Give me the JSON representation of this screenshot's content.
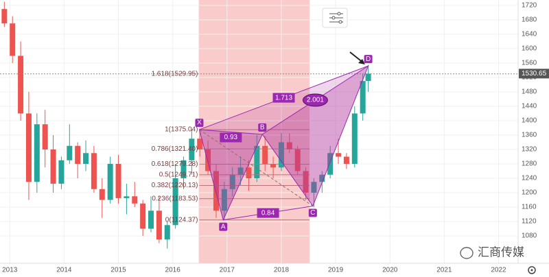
{
  "chart_data": {
    "type": "candlestick",
    "x": [
      2012.9,
      2013.05,
      2013.2,
      2013.35,
      2013.5,
      2013.65,
      2013.8,
      2013.95,
      2014.1,
      2014.25,
      2014.4,
      2014.55,
      2014.7,
      2014.85,
      2015.0,
      2015.15,
      2015.3,
      2015.45,
      2015.6,
      2015.75,
      2015.9,
      2016.05,
      2016.2,
      2016.35,
      2016.5,
      2016.65,
      2016.8,
      2016.95,
      2017.1,
      2017.25,
      2017.4,
      2017.55,
      2017.7,
      2017.85,
      2018.0,
      2018.15,
      2018.3,
      2018.45,
      2018.6,
      2018.75,
      2018.9,
      2019.05,
      2019.2,
      2019.35,
      2019.5,
      2019.6
    ],
    "open": [
      1710,
      1670,
      1580,
      1420,
      1230,
      1390,
      1320,
      1225,
      1290,
      1330,
      1280,
      1310,
      1210,
      1180,
      1280,
      1185,
      1190,
      1170,
      1100,
      1150,
      1070,
      1110,
      1240,
      1290,
      1350,
      1320,
      1260,
      1150,
      1210,
      1250,
      1270,
      1240,
      1330,
      1280,
      1270,
      1340,
      1320,
      1260,
      1200,
      1230,
      1250,
      1310,
      1300,
      1280,
      1420,
      1510
    ],
    "high": [
      1730,
      1690,
      1620,
      1480,
      1420,
      1430,
      1360,
      1300,
      1390,
      1340,
      1345,
      1330,
      1240,
      1300,
      1305,
      1225,
      1230,
      1180,
      1190,
      1190,
      1120,
      1280,
      1300,
      1375,
      1375,
      1345,
      1280,
      1230,
      1270,
      1300,
      1290,
      1360,
      1357,
      1300,
      1366,
      1365,
      1330,
      1270,
      1240,
      1260,
      1330,
      1350,
      1310,
      1440,
      1530,
      1555
    ],
    "low": [
      1660,
      1560,
      1400,
      1180,
      1200,
      1270,
      1200,
      1210,
      1280,
      1240,
      1260,
      1200,
      1130,
      1170,
      1170,
      1140,
      1160,
      1080,
      1090,
      1060,
      1045,
      1100,
      1210,
      1250,
      1300,
      1250,
      1130,
      1124,
      1190,
      1220,
      1205,
      1230,
      1260,
      1240,
      1260,
      1310,
      1250,
      1180,
      1160,
      1200,
      1240,
      1280,
      1266,
      1270,
      1400,
      1480
    ],
    "close": [
      1670,
      1580,
      1420,
      1230,
      1390,
      1320,
      1225,
      1290,
      1330,
      1280,
      1310,
      1210,
      1180,
      1280,
      1185,
      1190,
      1170,
      1100,
      1150,
      1070,
      1110,
      1240,
      1290,
      1350,
      1320,
      1260,
      1150,
      1210,
      1250,
      1270,
      1240,
      1330,
      1280,
      1270,
      1340,
      1320,
      1260,
      1200,
      1230,
      1250,
      1310,
      1300,
      1280,
      1420,
      1510,
      1530.65
    ],
    "up_color": "#26a69a",
    "down_color": "#ef5350",
    "xlim": [
      2012.82,
      2022.36
    ],
    "ylim": [
      1004,
      1735
    ],
    "xticks": [
      2013,
      2014,
      2015,
      2016,
      2017,
      2018,
      2019,
      2020,
      2021,
      2022
    ],
    "yticks": [
      1080,
      1120,
      1160,
      1200,
      1240,
      1280,
      1320,
      1360,
      1400,
      1440,
      1480,
      1520,
      1560,
      1600,
      1640,
      1680,
      1720
    ],
    "last_price": 1530.65,
    "band": [
      2016.48,
      2018.52
    ],
    "fib_levels": [
      {
        "value": 1529.95,
        "label": "1.618(1529.95)"
      },
      {
        "value": 1375.04,
        "label": "1(1375.04)"
      },
      {
        "value": 1321.4,
        "label": "0.786(1321.40)"
      },
      {
        "value": 1279.28,
        "label": "0.618(1279.28)"
      },
      {
        "value": 1249.71,
        "label": "0.5(1249.71)"
      },
      {
        "value": 1220.13,
        "label": "0.382(1220.13)"
      },
      {
        "value": 1183.53,
        "label": "0.236(1183.53)"
      },
      {
        "value": 1124.37,
        "label": "0(1124.37)"
      }
    ],
    "pattern": [
      {
        "label": "X",
        "x": 2016.49,
        "y": 1375.04
      },
      {
        "label": "A",
        "x": 2016.93,
        "y": 1124.37
      },
      {
        "label": "B",
        "x": 2017.65,
        "y": 1362
      },
      {
        "label": "C",
        "x": 2018.58,
        "y": 1163
      },
      {
        "label": "D",
        "x": 2019.6,
        "y": 1552
      }
    ],
    "ratios": [
      0.93,
      1.713,
      2.001,
      0.84
    ],
    "watermark": "汇商传媒"
  }
}
